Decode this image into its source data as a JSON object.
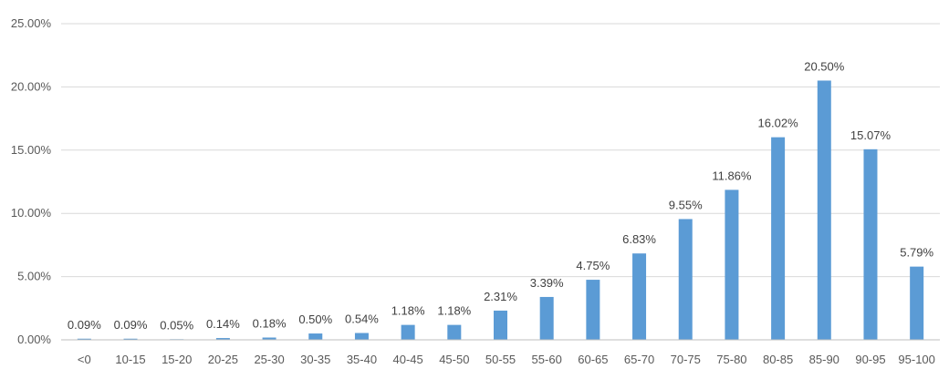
{
  "chart_data": {
    "type": "bar",
    "title": "",
    "xlabel": "",
    "ylabel": "",
    "categories": [
      "<0",
      "10-15",
      "15-20",
      "20-25",
      "25-30",
      "30-35",
      "35-40",
      "40-45",
      "45-50",
      "50-55",
      "55-60",
      "60-65",
      "65-70",
      "70-75",
      "75-80",
      "80-85",
      "85-90",
      "90-95",
      "95-100"
    ],
    "values": [
      0.09,
      0.09,
      0.05,
      0.14,
      0.18,
      0.5,
      0.54,
      1.18,
      1.18,
      2.31,
      3.39,
      4.75,
      6.83,
      9.55,
      11.86,
      16.02,
      20.5,
      15.07,
      5.79
    ],
    "data_labels": [
      "0.09%",
      "0.09%",
      "0.05%",
      "0.14%",
      "0.18%",
      "0.50%",
      "0.54%",
      "1.18%",
      "1.18%",
      "2.31%",
      "3.39%",
      "4.75%",
      "6.83%",
      "9.55%",
      "11.86%",
      "16.02%",
      "20.50%",
      "15.07%",
      "5.79%"
    ],
    "ylim": [
      0,
      25
    ],
    "yticks": [
      0,
      5,
      10,
      15,
      20,
      25
    ],
    "ytick_labels": [
      "0.00%",
      "5.00%",
      "10.00%",
      "15.00%",
      "20.00%",
      "25.00%"
    ],
    "grid": true,
    "legend": "none",
    "bar_color": "#5b9bd5"
  }
}
